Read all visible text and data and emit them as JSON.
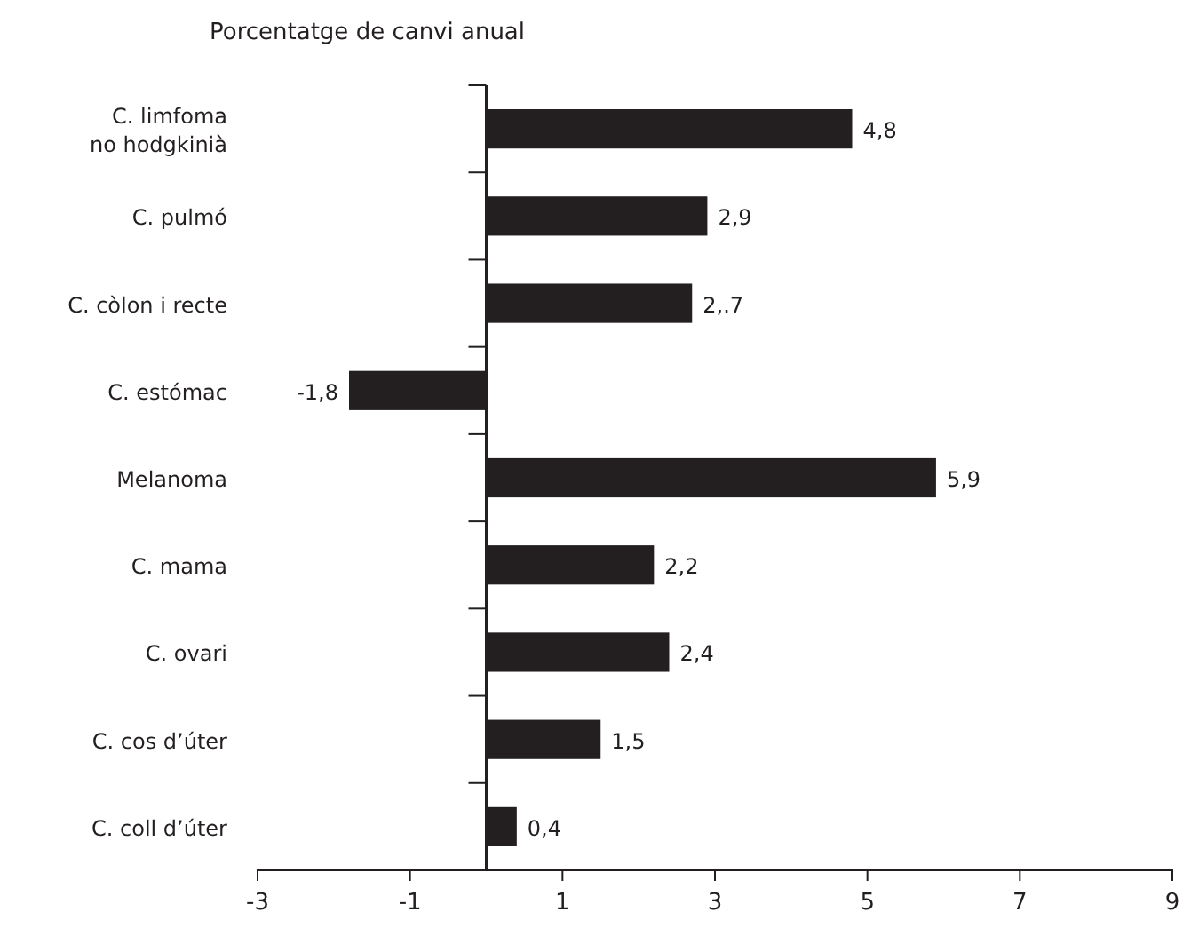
{
  "chart_data": {
    "type": "bar",
    "orientation": "horizontal",
    "title": "Porcentatge de canvi anual",
    "categories": [
      "C. limfoma\nno hodgkinià",
      "C. pulmó",
      "C. còlon i recte",
      "C. estómac",
      "Melanoma",
      "C. mama",
      "C. ovari",
      "C. cos d’úter",
      "C. coll d’úter"
    ],
    "values": [
      4.8,
      2.9,
      2.7,
      -1.8,
      5.9,
      2.2,
      2.4,
      1.5,
      0.4
    ],
    "value_labels": [
      "4,8",
      "2,9",
      "2,.7",
      "-1,8",
      "5,9",
      "2,2",
      "2,4",
      "1,5",
      "0,4"
    ],
    "color": "#231f20",
    "xlim": [
      -3,
      9
    ],
    "xticks": [
      -3,
      -1,
      1,
      3,
      5,
      7,
      9
    ],
    "grid": false
  }
}
